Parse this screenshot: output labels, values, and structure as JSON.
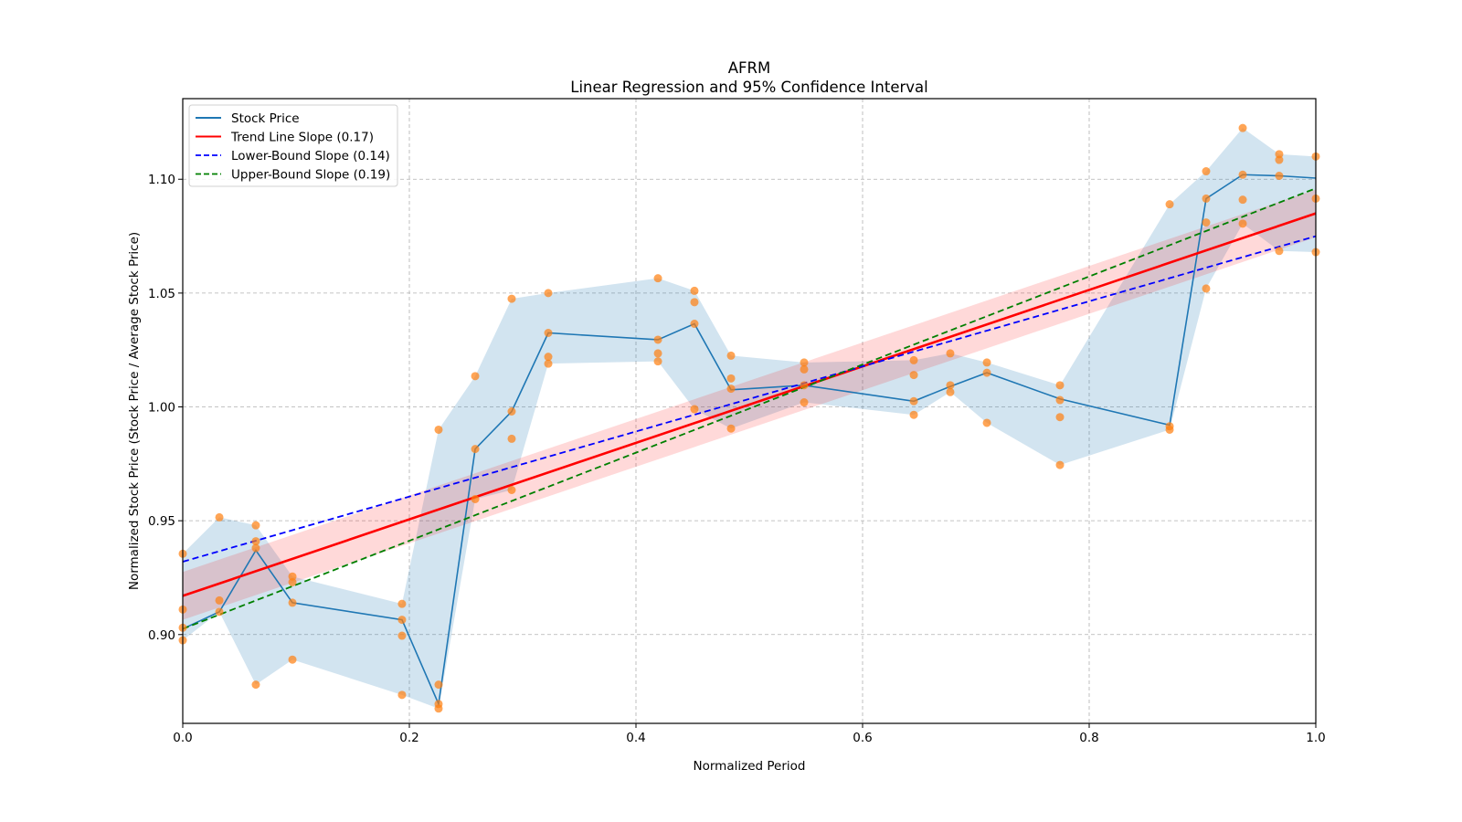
{
  "chart_data": {
    "type": "line",
    "title": "AFRM",
    "subtitle": "Linear Regression and 95% Confidence Interval",
    "xlabel": "Normalized Period",
    "ylabel": "Normalized Stock Price (Stock Price / Average Stock Price)",
    "xlim": [
      0.0,
      1.0
    ],
    "ylim": [
      0.861,
      1.1354
    ],
    "grid": true,
    "legend_position": "top-left",
    "x_ticks": [
      0.0,
      0.2,
      0.4,
      0.6,
      0.8,
      1.0
    ],
    "x_tick_labels": [
      "0.0",
      "0.2",
      "0.4",
      "0.6",
      "0.8",
      "1.0"
    ],
    "y_ticks": [
      0.9,
      0.95,
      1.0,
      1.05,
      1.1
    ],
    "y_tick_labels": [
      "0.90",
      "0.95",
      "1.00",
      "1.05",
      "1.10"
    ],
    "colors": {
      "stock_line": "#1f77b4",
      "stock_band": "#1f77b4",
      "points": "#ff7f0e",
      "trend": "#ff0000",
      "lower": "#0000ff",
      "upper": "#008000",
      "trend_band": "#ff9999"
    },
    "legend": [
      {
        "label": "Stock Price",
        "color": "#1f77b4",
        "style": "solid"
      },
      {
        "label": "Trend Line Slope (0.17)",
        "color": "#ff0000",
        "style": "solid"
      },
      {
        "label": "Lower-Bound Slope (0.14)",
        "color": "#0000ff",
        "style": "dashed"
      },
      {
        "label": "Upper-Bound Slope (0.19)",
        "color": "#008000",
        "style": "dashed"
      }
    ],
    "stock_price": {
      "name": "Stock Price",
      "x": [
        0.0,
        0.0323,
        0.0645,
        0.0968,
        0.1935,
        0.2258,
        0.2581,
        0.2903,
        0.3226,
        0.4194,
        0.4516,
        0.4839,
        0.5484,
        0.6452,
        0.6774,
        0.7097,
        0.7742,
        0.871,
        0.9032,
        0.9355,
        0.9677,
        1.0
      ],
      "y": [
        0.9025,
        0.91,
        0.937,
        0.914,
        0.9065,
        0.8695,
        0.9815,
        0.998,
        1.0325,
        1.0295,
        1.0365,
        1.0075,
        1.0095,
        1.0025,
        1.009,
        1.015,
        1.0035,
        0.992,
        1.0915,
        1.102,
        1.1015,
        1.1005
      ],
      "band_low": [
        0.8975,
        0.91,
        0.878,
        0.889,
        0.8735,
        0.8675,
        0.9595,
        0.9635,
        1.019,
        1.02,
        0.999,
        0.9905,
        1.002,
        0.9965,
        1.0065,
        0.993,
        0.9745,
        0.99,
        1.052,
        1.0805,
        1.0685,
        1.068
      ],
      "band_high": [
        0.9355,
        0.9515,
        0.948,
        0.9255,
        0.9135,
        0.99,
        1.0135,
        1.0475,
        1.05,
        1.0565,
        1.051,
        1.0225,
        1.0195,
        1.0205,
        1.0235,
        1.0195,
        1.0095,
        1.089,
        1.1035,
        1.1225,
        1.111,
        1.11
      ]
    },
    "scatter_points": [
      {
        "x": 0.0,
        "y": [
          0.9355,
          0.911,
          0.903,
          0.8975
        ]
      },
      {
        "x": 0.0323,
        "y": [
          0.9515,
          0.915,
          0.91
        ]
      },
      {
        "x": 0.0645,
        "y": [
          0.948,
          0.941,
          0.938,
          0.878
        ]
      },
      {
        "x": 0.0968,
        "y": [
          0.9255,
          0.923,
          0.914,
          0.889
        ]
      },
      {
        "x": 0.1935,
        "y": [
          0.9135,
          0.9065,
          0.8995,
          0.8735
        ]
      },
      {
        "x": 0.2258,
        "y": [
          0.99,
          0.878,
          0.8695,
          0.8675
        ]
      },
      {
        "x": 0.2581,
        "y": [
          1.0135,
          0.9815,
          0.9595
        ]
      },
      {
        "x": 0.2903,
        "y": [
          1.0475,
          0.998,
          0.986,
          0.9635
        ]
      },
      {
        "x": 0.3226,
        "y": [
          1.05,
          1.0325,
          1.022,
          1.019
        ]
      },
      {
        "x": 0.4194,
        "y": [
          1.0565,
          1.0295,
          1.0235,
          1.02
        ]
      },
      {
        "x": 0.4516,
        "y": [
          1.051,
          1.046,
          1.0365,
          0.999
        ]
      },
      {
        "x": 0.4839,
        "y": [
          1.0225,
          1.0125,
          1.008,
          0.9905
        ]
      },
      {
        "x": 0.5484,
        "y": [
          1.0195,
          1.0165,
          1.0095,
          1.002
        ]
      },
      {
        "x": 0.6452,
        "y": [
          1.0205,
          1.014,
          1.0025,
          0.9965
        ]
      },
      {
        "x": 0.6774,
        "y": [
          1.0235,
          1.0095,
          1.0065
        ]
      },
      {
        "x": 0.7097,
        "y": [
          1.0195,
          1.015,
          0.993
        ]
      },
      {
        "x": 0.7742,
        "y": [
          1.0095,
          1.003,
          0.9955,
          0.9745
        ]
      },
      {
        "x": 0.871,
        "y": [
          1.089,
          0.9915,
          0.99
        ]
      },
      {
        "x": 0.9032,
        "y": [
          1.1035,
          1.0915,
          1.081,
          1.052
        ]
      },
      {
        "x": 0.9355,
        "y": [
          1.1225,
          1.102,
          1.091,
          1.0805
        ]
      },
      {
        "x": 0.9677,
        "y": [
          1.111,
          1.1085,
          1.1015,
          1.0685
        ]
      },
      {
        "x": 1.0,
        "y": [
          1.11,
          1.0915,
          1.068
        ]
      }
    ],
    "trend_line": {
      "name": "Trend Line Slope (0.17)",
      "slope": 0.17,
      "x": [
        0.0,
        1.0
      ],
      "y": [
        0.917,
        1.085
      ],
      "ci_low": [
        0.9065,
        1.0745
      ],
      "ci_high": [
        0.9275,
        1.0955
      ]
    },
    "lower_bound_line": {
      "name": "Lower-Bound Slope (0.14)",
      "slope": 0.14,
      "x": [
        0.0,
        1.0
      ],
      "y": [
        0.932,
        1.075
      ]
    },
    "upper_bound_line": {
      "name": "Upper-Bound Slope (0.19)",
      "slope": 0.19,
      "x": [
        0.0,
        1.0
      ],
      "y": [
        0.9025,
        1.096
      ]
    }
  }
}
